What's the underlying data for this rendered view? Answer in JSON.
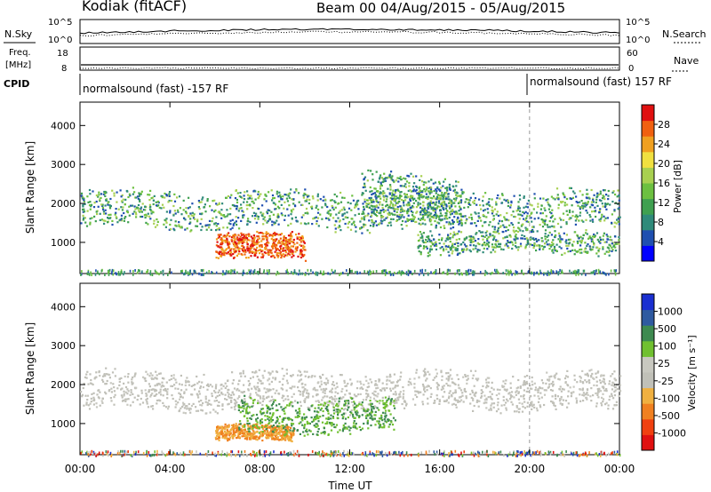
{
  "header": {
    "station": "Kodiak (fitACF)",
    "beam_date": "Beam 00  04/Aug/2015 - 05/Aug/2015"
  },
  "strips": {
    "nsky_label": "N.Sky",
    "nsearch_label": "N.Search",
    "noise_ticks": [
      "10^5",
      "10^0"
    ],
    "freq_label_1": "Freq.",
    "freq_label_2": "[MHz]",
    "freq_ticks": [
      "18",
      "8"
    ],
    "nave_label": "Nave",
    "nave_ticks": [
      "60",
      "0"
    ],
    "cpid_label": "CPID",
    "cpid_left": "normalsound (fast) -157 RF",
    "cpid_right": "normalsound (fast) 157 RF"
  },
  "chart_data": [
    {
      "type": "heatmap",
      "quantity": "power",
      "ylabel": "Slant Range [km]",
      "ylim": [
        200,
        4600
      ],
      "yticks": [
        1000,
        2000,
        3000,
        4000
      ],
      "xlabel": "Time UT",
      "xticks": [
        "00:00",
        "04:00",
        "08:00",
        "12:00",
        "16:00",
        "20:00",
        "00:00"
      ],
      "xlim_hours": [
        0,
        24
      ],
      "colorbar": {
        "label": "Power [dB]",
        "ticks": [
          "28",
          "24",
          "20",
          "16",
          "12",
          "8",
          "4"
        ],
        "range": [
          0,
          30
        ],
        "colors": [
          "#0000ff",
          "#1f4fb0",
          "#2f8a7a",
          "#3fa050",
          "#6cc040",
          "#a8d050",
          "#f0e040",
          "#f0a020",
          "#f06010",
          "#e01010"
        ]
      },
      "cpid_change_hour": 20.0,
      "echo_bands": [
        {
          "name": "main-ionospheric-band",
          "hours": [
            0,
            24
          ],
          "range_km": [
            1300,
            2400
          ]
        },
        {
          "name": "strong-near-range-patch",
          "hours": [
            6,
            10
          ],
          "range_km": [
            550,
            1300
          ],
          "peak_power_db": 28
        },
        {
          "name": "ground-scatter-arc",
          "hours": [
            12.5,
            17
          ],
          "range_km": [
            1400,
            2800
          ]
        },
        {
          "name": "lower-trailing-band",
          "hours": [
            15,
            24
          ],
          "range_km": [
            700,
            1400
          ]
        }
      ]
    },
    {
      "type": "heatmap",
      "quantity": "velocity",
      "ylabel": "Slant Range [km]",
      "ylim": [
        200,
        4600
      ],
      "yticks": [
        1000,
        2000,
        3000,
        4000
      ],
      "xlabel": "Time UT",
      "xticks": [
        "00:00",
        "04:00",
        "08:00",
        "12:00",
        "16:00",
        "20:00",
        "00:00"
      ],
      "xlim_hours": [
        0,
        24
      ],
      "colorbar": {
        "label": "Velocity [m s⁻¹]",
        "ticks": [
          "1000",
          "500",
          "100",
          "25",
          "-25",
          "-100",
          "-500",
          "-1000"
        ],
        "range": [
          -1200,
          1200
        ],
        "colors": [
          "#e01010",
          "#f04010",
          "#f08020",
          "#f0b040",
          "#c0c0b8",
          "#c8c8c0",
          "#70c030",
          "#3e8a50",
          "#2f5aa0",
          "#1a2fd0"
        ]
      },
      "cpid_change_hour": 20.0,
      "echo_bands": [
        {
          "name": "ground-scatter-band",
          "hours": [
            0,
            24
          ],
          "range_km": [
            1300,
            2400
          ],
          "velocity": "~0 (grey)"
        },
        {
          "name": "orange-negative-patch",
          "hours": [
            6,
            9.5
          ],
          "range_km": [
            550,
            1000
          ],
          "velocity_ms": -150
        },
        {
          "name": "green-positive-patch",
          "hours": [
            7,
            14
          ],
          "range_km": [
            700,
            1700
          ],
          "velocity_ms": 150
        }
      ]
    }
  ]
}
